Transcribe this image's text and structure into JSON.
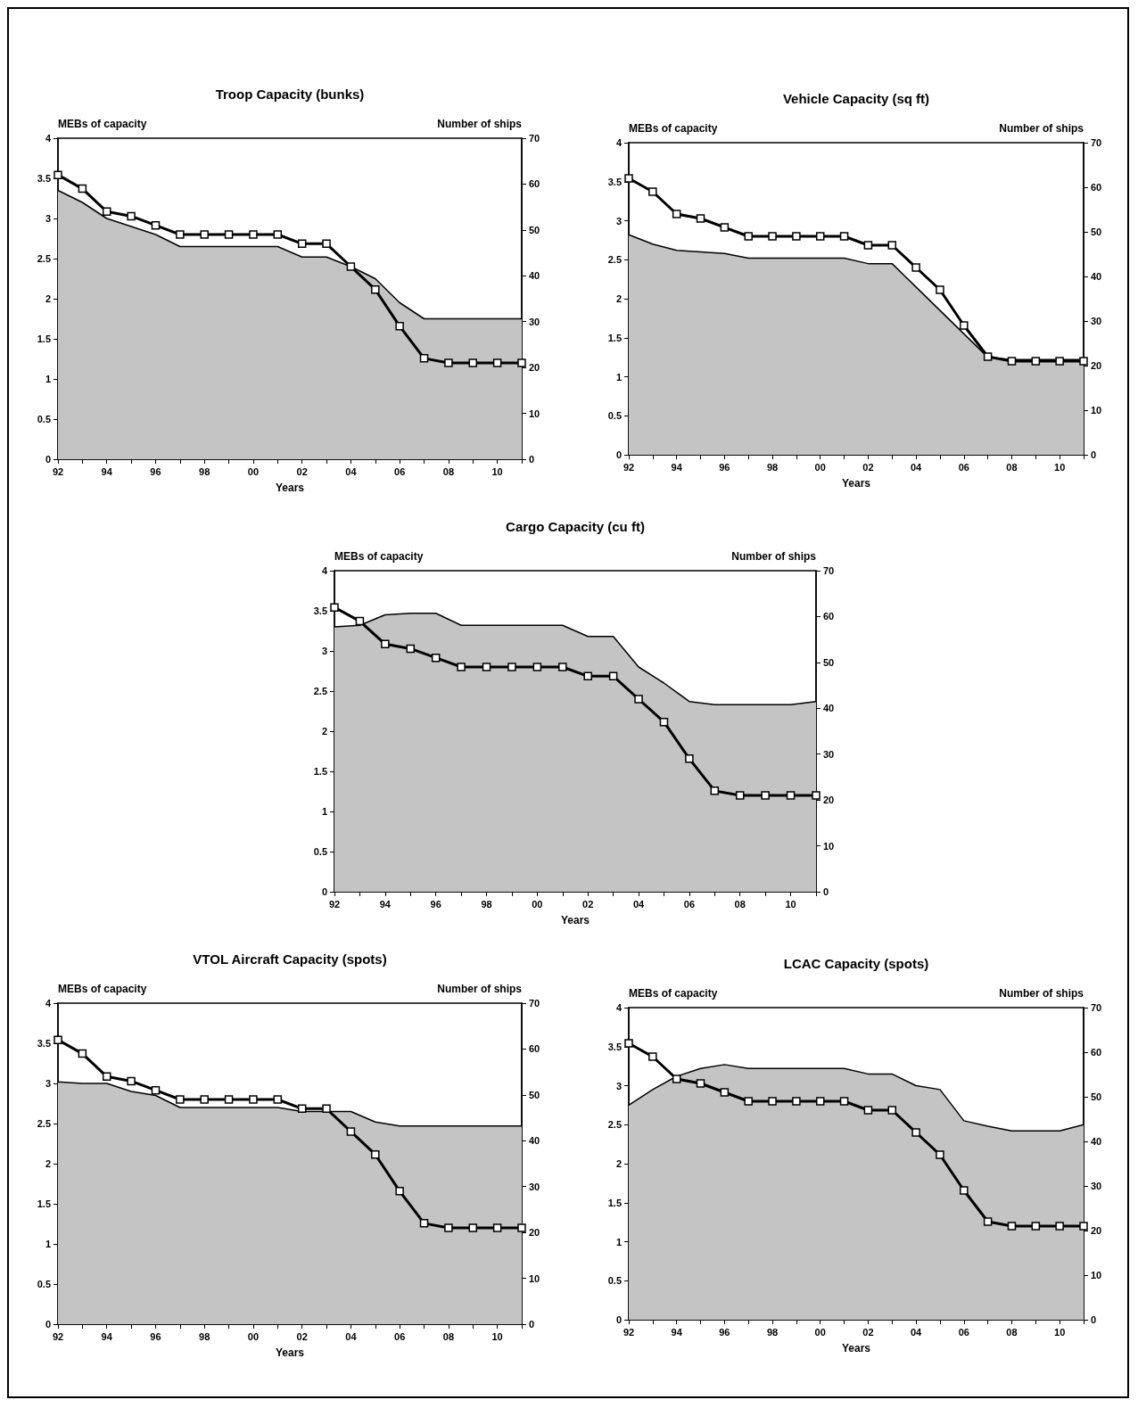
{
  "chart_data": [
    {
      "type": "area",
      "title": "Troop Capacity (bunks)",
      "xlabel": "Years",
      "ylabel": "MEBs of capacity",
      "y2label": "Number of ships",
      "categories": [
        "92",
        null,
        "94",
        null,
        "96",
        null,
        "98",
        null,
        "00",
        null,
        "02",
        null,
        "04",
        null,
        "06",
        null,
        "08",
        null,
        "10",
        null
      ],
      "ylim": [
        0,
        4
      ],
      "yticks": [
        0,
        0.5,
        1,
        1.5,
        2,
        2.5,
        3,
        3.5,
        4
      ],
      "y2lim": [
        0,
        70
      ],
      "y2ticks": [
        0,
        10,
        20,
        30,
        40,
        50,
        60,
        70
      ],
      "grid": false,
      "series": [
        {
          "type": "area",
          "color": "#c4c4c4",
          "values": [
            3.35,
            3.2,
            3.0,
            2.9,
            2.8,
            2.65,
            2.65,
            2.65,
            2.65,
            2.65,
            2.52,
            2.52,
            2.4,
            2.25,
            1.95,
            1.75,
            1.75,
            1.75,
            1.75,
            1.75
          ]
        },
        {
          "type": "line",
          "axis": "y2",
          "color": "#000000",
          "marker": "square",
          "values": [
            62,
            59,
            54,
            53,
            51,
            49,
            49,
            49,
            49,
            49,
            47,
            47,
            42,
            37,
            29,
            22,
            21,
            21,
            21,
            21
          ]
        }
      ]
    },
    {
      "type": "area",
      "title": "Vehicle Capacity (sq ft)",
      "xlabel": "Years",
      "ylabel": "MEBs of capacity",
      "y2label": "Number of ships",
      "categories": [
        "92",
        null,
        "94",
        null,
        "96",
        null,
        "98",
        null,
        "00",
        null,
        "02",
        null,
        "04",
        null,
        "06",
        null,
        "08",
        null,
        "10",
        null
      ],
      "ylim": [
        0,
        4
      ],
      "yticks": [
        0,
        0.5,
        1,
        1.5,
        2,
        2.5,
        3,
        3.5,
        4
      ],
      "y2lim": [
        0,
        70
      ],
      "y2ticks": [
        0,
        10,
        20,
        30,
        40,
        50,
        60,
        70
      ],
      "grid": false,
      "series": [
        {
          "type": "area",
          "color": "#c4c4c4",
          "values": [
            2.82,
            2.7,
            2.62,
            2.6,
            2.58,
            2.52,
            2.52,
            2.52,
            2.52,
            2.52,
            2.45,
            2.45,
            2.15,
            1.85,
            1.55,
            1.25,
            1.22,
            1.22,
            1.22,
            1.22
          ]
        },
        {
          "type": "line",
          "axis": "y2",
          "color": "#000000",
          "marker": "square",
          "values": [
            62,
            59,
            54,
            53,
            51,
            49,
            49,
            49,
            49,
            49,
            47,
            47,
            42,
            37,
            29,
            22,
            21,
            21,
            21,
            21
          ]
        }
      ]
    },
    {
      "type": "area",
      "title": "Cargo Capacity (cu ft)",
      "xlabel": "Years",
      "ylabel": "MEBs of capacity",
      "y2label": "Number of ships",
      "categories": [
        "92",
        null,
        "94",
        null,
        "96",
        null,
        "98",
        null,
        "00",
        null,
        "02",
        null,
        "04",
        null,
        "06",
        null,
        "08",
        null,
        "10",
        null
      ],
      "ylim": [
        0,
        4
      ],
      "yticks": [
        0,
        0.5,
        1,
        1.5,
        2,
        2.5,
        3,
        3.5,
        4
      ],
      "y2lim": [
        0,
        70
      ],
      "y2ticks": [
        0,
        10,
        20,
        30,
        40,
        50,
        60,
        70
      ],
      "grid": false,
      "series": [
        {
          "type": "area",
          "color": "#c4c4c4",
          "values": [
            3.3,
            3.32,
            3.45,
            3.47,
            3.47,
            3.32,
            3.32,
            3.32,
            3.32,
            3.32,
            3.18,
            3.18,
            2.8,
            2.6,
            2.37,
            2.33,
            2.33,
            2.33,
            2.33,
            2.37
          ]
        },
        {
          "type": "line",
          "axis": "y2",
          "color": "#000000",
          "marker": "square",
          "values": [
            62,
            59,
            54,
            53,
            51,
            49,
            49,
            49,
            49,
            49,
            47,
            47,
            42,
            37,
            29,
            22,
            21,
            21,
            21,
            21
          ]
        }
      ]
    },
    {
      "type": "area",
      "title": "VTOL Aircraft Capacity (spots)",
      "xlabel": "Years",
      "ylabel": "MEBs of capacity",
      "y2label": "Number of ships",
      "categories": [
        "92",
        null,
        "94",
        null,
        "96",
        null,
        "98",
        null,
        "00",
        null,
        "02",
        null,
        "04",
        null,
        "06",
        null,
        "08",
        null,
        "10",
        null
      ],
      "ylim": [
        0,
        4
      ],
      "yticks": [
        0,
        0.5,
        1,
        1.5,
        2,
        2.5,
        3,
        3.5,
        4
      ],
      "y2lim": [
        0,
        70
      ],
      "y2ticks": [
        0,
        10,
        20,
        30,
        40,
        50,
        60,
        70
      ],
      "grid": false,
      "series": [
        {
          "type": "area",
          "color": "#c4c4c4",
          "values": [
            3.02,
            3.0,
            3.0,
            2.9,
            2.85,
            2.7,
            2.7,
            2.7,
            2.7,
            2.7,
            2.65,
            2.65,
            2.65,
            2.52,
            2.47,
            2.47,
            2.47,
            2.47,
            2.47,
            2.47
          ]
        },
        {
          "type": "line",
          "axis": "y2",
          "color": "#000000",
          "marker": "square",
          "values": [
            62,
            59,
            54,
            53,
            51,
            49,
            49,
            49,
            49,
            49,
            47,
            47,
            42,
            37,
            29,
            22,
            21,
            21,
            21,
            21
          ]
        }
      ]
    },
    {
      "type": "area",
      "title": "LCAC Capacity (spots)",
      "xlabel": "Years",
      "ylabel": "MEBs of capacity",
      "y2label": "Number of ships",
      "categories": [
        "92",
        null,
        "94",
        null,
        "96",
        null,
        "98",
        null,
        "00",
        null,
        "02",
        null,
        "04",
        null,
        "06",
        null,
        "08",
        null,
        "10",
        null
      ],
      "ylim": [
        0,
        4
      ],
      "yticks": [
        0,
        0.5,
        1,
        1.5,
        2,
        2.5,
        3,
        3.5,
        4
      ],
      "y2lim": [
        0,
        70
      ],
      "y2ticks": [
        0,
        10,
        20,
        30,
        40,
        50,
        60,
        70
      ],
      "grid": false,
      "series": [
        {
          "type": "area",
          "color": "#c4c4c4",
          "values": [
            2.75,
            2.95,
            3.12,
            3.22,
            3.27,
            3.22,
            3.22,
            3.22,
            3.22,
            3.22,
            3.15,
            3.15,
            3.0,
            2.95,
            2.55,
            2.48,
            2.42,
            2.42,
            2.42,
            2.5
          ]
        },
        {
          "type": "line",
          "axis": "y2",
          "color": "#000000",
          "marker": "square",
          "values": [
            62,
            59,
            54,
            53,
            51,
            49,
            49,
            49,
            49,
            49,
            47,
            47,
            42,
            37,
            29,
            22,
            21,
            21,
            21,
            21
          ]
        }
      ]
    }
  ]
}
